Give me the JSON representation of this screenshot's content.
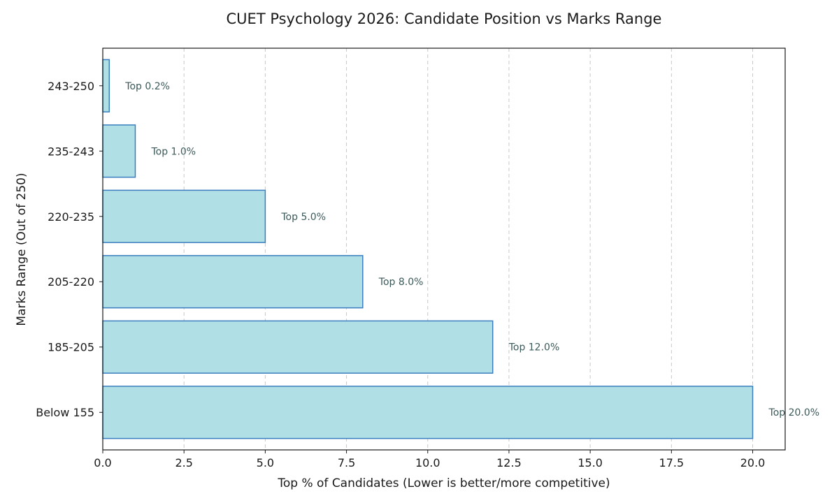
{
  "chart_data": {
    "type": "bar",
    "orientation": "horizontal",
    "title": "CUET Psychology 2026: Candidate Position vs Marks Range",
    "xlabel": "Top % of Candidates (Lower is better/more competitive)",
    "ylabel": "Marks Range (Out of 250)",
    "categories": [
      "Below 155",
      "185-205",
      "205-220",
      "220-235",
      "235-243",
      "243-250"
    ],
    "values": [
      20.0,
      12.0,
      8.0,
      5.0,
      1.0,
      0.2
    ],
    "data_labels": [
      "Top 20.0%",
      "Top 12.0%",
      "Top 8.0%",
      "Top 5.0%",
      "Top 1.0%",
      "Top 0.2%"
    ],
    "xlim": [
      0,
      21
    ],
    "xticks": [
      0.0,
      2.5,
      5.0,
      7.5,
      10.0,
      12.5,
      15.0,
      17.5,
      20.0
    ],
    "xtick_labels": [
      "0.0",
      "2.5",
      "5.0",
      "7.5",
      "10.0",
      "12.5",
      "15.0",
      "17.5",
      "20.0"
    ],
    "grid": "x, dashed",
    "colors": {
      "bar_fill": "#b0dfe5",
      "bar_edge": "#3a7ebf",
      "label_text": "#3d5a5a"
    }
  }
}
